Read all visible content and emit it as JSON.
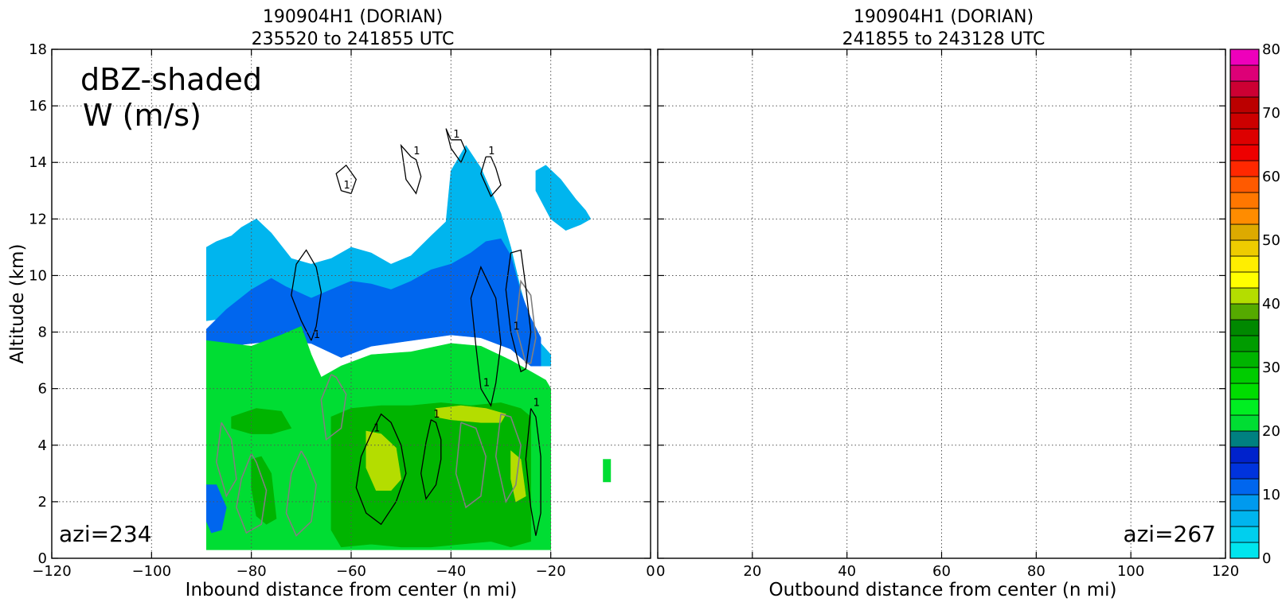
{
  "colors": {
    "zero_contour": "#808080",
    "positive_contour": "#000000",
    "grid": "#555555"
  },
  "chart_data": [
    {
      "type": "heatmap",
      "panel": "left",
      "title_line1": "190904H1 (DORIAN)",
      "title_line2": "235520 to 241855 UTC",
      "xlabel": "Inbound distance from center (n mi)",
      "ylabel": "Altitude (km)",
      "xlim": [
        -120,
        0
      ],
      "ylim": [
        0,
        18
      ],
      "xticks": [
        -120,
        -100,
        -80,
        -60,
        -40,
        -20,
        0
      ],
      "xtick_labels": [
        "−120",
        "−100",
        "−80",
        "−60",
        "−40",
        "−20",
        "0"
      ],
      "yticks": [
        0,
        2,
        4,
        6,
        8,
        10,
        12,
        14,
        16,
        18
      ],
      "ytick_labels": [
        "0",
        "2",
        "4",
        "6",
        "8",
        "10",
        "12",
        "14",
        "16",
        "18"
      ],
      "grid": true,
      "annotation_line1": "dBZ-shaded",
      "annotation_line2": "W (m/s)",
      "azimuth_label": "azi=234",
      "contour_label": "1",
      "reflectivity_regions": [
        {
          "dbz": 5,
          "x": [
            -89,
            -87,
            -84,
            -82,
            -79,
            -76,
            -72,
            -68,
            -64,
            -60,
            -56,
            -52,
            -48,
            -44,
            -41,
            -40,
            -37,
            -34,
            -32,
            -30,
            -28,
            -26,
            -24,
            -22,
            -20,
            -20,
            -22,
            -24,
            -26,
            -30,
            -40,
            -50,
            -60,
            -70,
            -80,
            -89
          ],
          "y": [
            11.0,
            11.2,
            11.4,
            11.7,
            12.0,
            11.5,
            10.6,
            10.4,
            10.6,
            11.0,
            10.8,
            10.4,
            10.7,
            11.4,
            11.9,
            13.7,
            14.6,
            13.8,
            13.0,
            12.2,
            11.0,
            9.5,
            8.3,
            7.6,
            7.2,
            6.8,
            6.8,
            7.0,
            7.4,
            8.2,
            8.6,
            8.5,
            8.5,
            8.6,
            8.6,
            8.4
          ]
        },
        {
          "dbz": 5,
          "x": [
            -23,
            -21,
            -18,
            -15,
            -13,
            -12,
            -14,
            -17,
            -20,
            -23
          ],
          "y": [
            13.7,
            13.9,
            13.4,
            12.7,
            12.3,
            12.0,
            11.8,
            11.6,
            12.0,
            13.0
          ]
        },
        {
          "dbz": 12,
          "x": [
            -89,
            -85,
            -80,
            -76,
            -73,
            -68,
            -64,
            -60,
            -56,
            -52,
            -48,
            -44,
            -40,
            -36,
            -33,
            -30,
            -28,
            -26,
            -24,
            -22,
            -22,
            -24,
            -28,
            -34,
            -40,
            -48,
            -56,
            -62,
            -68,
            -74,
            -80,
            -89
          ],
          "y": [
            8.1,
            8.8,
            9.5,
            9.9,
            9.6,
            9.2,
            9.5,
            9.8,
            9.7,
            9.5,
            9.8,
            10.2,
            10.4,
            10.8,
            11.2,
            11.3,
            10.7,
            9.4,
            8.5,
            7.8,
            6.8,
            6.8,
            7.4,
            7.8,
            7.9,
            7.7,
            7.5,
            7.1,
            7.6,
            7.7,
            7.6,
            7.4
          ]
        },
        {
          "dbz": 20,
          "x": [
            -89,
            -80,
            -74,
            -70,
            -68,
            -66,
            -62,
            -56,
            -48,
            -40,
            -34,
            -28,
            -24,
            -21,
            -20,
            -20,
            -30,
            -40,
            -50,
            -60,
            -70,
            -80,
            -89
          ],
          "y": [
            7.7,
            7.5,
            7.9,
            8.2,
            7.2,
            6.4,
            6.8,
            7.2,
            7.3,
            7.6,
            7.5,
            7.0,
            6.6,
            6.3,
            6.0,
            0.3,
            0.3,
            0.3,
            0.3,
            0.3,
            0.3,
            0.3,
            0.3
          ]
        },
        {
          "dbz": 20,
          "x": [
            -9.5,
            -8.0,
            -8.0,
            -9.5
          ],
          "y": [
            3.5,
            3.5,
            2.7,
            2.7
          ]
        },
        {
          "dbz": 12,
          "x": [
            -89,
            -87,
            -85,
            -86,
            -88,
            -89
          ],
          "y": [
            2.6,
            2.6,
            1.8,
            1.0,
            0.9,
            1.3
          ]
        },
        {
          "dbz": 32,
          "x": [
            -84,
            -79,
            -74,
            -72,
            -76,
            -80,
            -84
          ],
          "y": [
            5.0,
            5.3,
            5.2,
            4.6,
            4.4,
            4.4,
            4.6
          ]
        },
        {
          "dbz": 32,
          "x": [
            -64,
            -60,
            -54,
            -48,
            -42,
            -36,
            -30,
            -26,
            -24,
            -24,
            -28,
            -32,
            -38,
            -44,
            -50,
            -56,
            -62,
            -64
          ],
          "y": [
            5.0,
            5.3,
            5.4,
            5.4,
            5.5,
            5.4,
            5.5,
            5.3,
            5.0,
            0.6,
            0.4,
            0.6,
            0.5,
            0.4,
            0.4,
            0.5,
            0.4,
            1.0
          ]
        },
        {
          "dbz": 40,
          "x": [
            -57,
            -54,
            -51,
            -50,
            -52,
            -55,
            -57
          ],
          "y": [
            4.5,
            4.4,
            3.9,
            2.8,
            2.4,
            2.4,
            3.2
          ]
        },
        {
          "dbz": 40,
          "x": [
            -43,
            -38,
            -33,
            -29,
            -30,
            -34,
            -40,
            -43
          ],
          "y": [
            5.3,
            5.4,
            5.3,
            5.1,
            4.8,
            4.8,
            4.9,
            5.0
          ]
        },
        {
          "dbz": 40,
          "x": [
            -28,
            -26,
            -25,
            -27,
            -28
          ],
          "y": [
            3.8,
            3.5,
            2.2,
            2.0,
            2.8
          ]
        },
        {
          "dbz": 32,
          "x": [
            -80,
            -78,
            -76,
            -75,
            -77,
            -79,
            -80
          ],
          "y": [
            3.5,
            3.6,
            3.0,
            1.4,
            1.2,
            1.5,
            2.5
          ]
        }
      ],
      "w_contours": [
        {
          "level": 1,
          "x": [
            -68,
            -70,
            -72,
            -71,
            -69,
            -67,
            -66,
            -67,
            -68
          ],
          "y": [
            7.7,
            8.4,
            9.3,
            10.4,
            10.9,
            10.3,
            9.4,
            8.2,
            7.7
          ]
        },
        {
          "level": 1,
          "x": [
            -56,
            -58,
            -59,
            -57,
            -54,
            -51,
            -49,
            -50,
            -52,
            -54,
            -56
          ],
          "y": [
            4.4,
            3.6,
            2.5,
            1.6,
            1.2,
            2.0,
            3.0,
            4.0,
            4.8,
            5.1,
            4.4
          ]
        },
        {
          "level": 1,
          "x": [
            -44,
            -45,
            -46,
            -45,
            -43,
            -42,
            -42,
            -43,
            -44
          ],
          "y": [
            4.9,
            4.1,
            3.0,
            2.1,
            2.6,
            3.5,
            4.2,
            4.8,
            4.9
          ]
        },
        {
          "level": 1,
          "x": [
            -34,
            -35,
            -36,
            -34,
            -31,
            -30,
            -31,
            -32,
            -34
          ],
          "y": [
            6.0,
            7.5,
            9.2,
            10.3,
            9.2,
            7.6,
            6.2,
            5.4,
            6.0
          ]
        },
        {
          "level": 1,
          "x": [
            -28,
            -29,
            -28,
            -26,
            -25,
            -24,
            -25,
            -26,
            -28
          ],
          "y": [
            8.0,
            9.5,
            10.8,
            10.9,
            9.6,
            8.0,
            6.7,
            6.6,
            8.0
          ]
        },
        {
          "level": 1,
          "x": [
            -24,
            -25,
            -24,
            -23,
            -22,
            -22,
            -23,
            -24
          ],
          "y": [
            5.3,
            3.5,
            1.8,
            0.8,
            1.6,
            3.6,
            5.0,
            5.3
          ]
        },
        {
          "level": 1,
          "x": [
            -48,
            -50,
            -49,
            -47,
            -46,
            -47,
            -48
          ],
          "y": [
            14.2,
            14.6,
            13.4,
            12.9,
            13.5,
            14.1,
            14.2
          ]
        },
        {
          "level": 1,
          "x": [
            -40,
            -41,
            -40,
            -38,
            -37,
            -38,
            -40
          ],
          "y": [
            14.8,
            15.2,
            14.5,
            14.0,
            14.4,
            14.8,
            14.8
          ]
        },
        {
          "level": 1,
          "x": [
            -33,
            -34,
            -32,
            -30,
            -31,
            -32,
            -33
          ],
          "y": [
            14.2,
            13.6,
            12.8,
            13.2,
            13.8,
            14.2,
            14.2
          ]
        },
        {
          "level": 1,
          "x": [
            -62,
            -63,
            -61,
            -59,
            -60,
            -62
          ],
          "y": [
            13.0,
            13.6,
            13.9,
            13.4,
            12.9,
            13.0
          ]
        }
      ],
      "zero_contours": [
        {
          "level": 0,
          "x": [
            -80,
            -82,
            -83,
            -81,
            -78,
            -77,
            -79,
            -80
          ],
          "y": [
            3.7,
            2.8,
            1.8,
            0.9,
            1.2,
            2.4,
            3.4,
            3.7
          ]
        },
        {
          "level": 0,
          "x": [
            -70,
            -72,
            -73,
            -71,
            -68,
            -67,
            -69,
            -70
          ],
          "y": [
            3.8,
            3.0,
            1.6,
            0.8,
            1.3,
            2.6,
            3.5,
            3.8
          ]
        },
        {
          "level": 0,
          "x": [
            -38,
            -39,
            -37,
            -34,
            -33,
            -35,
            -38
          ],
          "y": [
            4.8,
            3.0,
            1.8,
            2.2,
            3.6,
            4.6,
            4.8
          ]
        },
        {
          "level": 0,
          "x": [
            -30,
            -31,
            -29,
            -27,
            -26,
            -28,
            -30
          ],
          "y": [
            5.1,
            3.6,
            2.0,
            2.6,
            4.0,
            5.0,
            5.1
          ]
        },
        {
          "level": 0,
          "x": [
            -25,
            -27,
            -26,
            -24,
            -23,
            -24,
            -25
          ],
          "y": [
            6.9,
            8.2,
            9.8,
            9.3,
            7.8,
            6.9,
            6.9
          ]
        },
        {
          "level": 0,
          "x": [
            -64,
            -66,
            -65,
            -62,
            -61,
            -63,
            -64
          ],
          "y": [
            6.5,
            5.6,
            4.2,
            4.6,
            5.8,
            6.4,
            6.5
          ]
        },
        {
          "level": 0,
          "x": [
            -86,
            -87,
            -85,
            -83,
            -84,
            -86
          ],
          "y": [
            4.8,
            3.4,
            2.2,
            2.8,
            4.2,
            4.8
          ]
        }
      ]
    },
    {
      "type": "heatmap",
      "panel": "right",
      "title_line1": "190904H1 (DORIAN)",
      "title_line2": "241855 to 243128 UTC",
      "xlabel": "Outbound distance from center (n mi)",
      "ylabel": "",
      "xlim": [
        0,
        120
      ],
      "ylim": [
        0,
        18
      ],
      "xticks": [
        0,
        20,
        40,
        60,
        80,
        100,
        120
      ],
      "xtick_labels": [
        "0",
        "20",
        "40",
        "60",
        "80",
        "100",
        "120"
      ],
      "yticks": [
        0,
        2,
        4,
        6,
        8,
        10,
        12,
        14,
        16,
        18
      ],
      "grid": true,
      "azimuth_label": "azi=267",
      "reflectivity_regions": [],
      "w_contours": []
    }
  ],
  "colorbar": {
    "range": [
      0,
      80
    ],
    "step": 2.5,
    "tick_values": [
      0,
      10,
      20,
      30,
      40,
      50,
      60,
      70,
      80
    ],
    "tick_labels": [
      "0",
      "10",
      "20",
      "30",
      "40",
      "50",
      "60",
      "70",
      "80"
    ],
    "colors": [
      "#00e5ee",
      "#00cfee",
      "#00b5ee",
      "#009aee",
      "#0066ee",
      "#0033dd",
      "#0022cc",
      "#008080",
      "#00dd33",
      "#00ee22",
      "#00dd00",
      "#00cc00",
      "#00b400",
      "#009c00",
      "#008800",
      "#55aa00",
      "#b4dd00",
      "#ffff00",
      "#ffee00",
      "#eecc00",
      "#ddaa00",
      "#ff8c00",
      "#ff7700",
      "#ff5a00",
      "#ff2800",
      "#ee0000",
      "#dd0000",
      "#cc0000",
      "#bb0000",
      "#cc0033",
      "#dd0077",
      "#ee00bb",
      "#ee00ee",
      "#cc33dd",
      "#aa44cc",
      "#7744aa",
      "#442266",
      "#000000"
    ]
  }
}
